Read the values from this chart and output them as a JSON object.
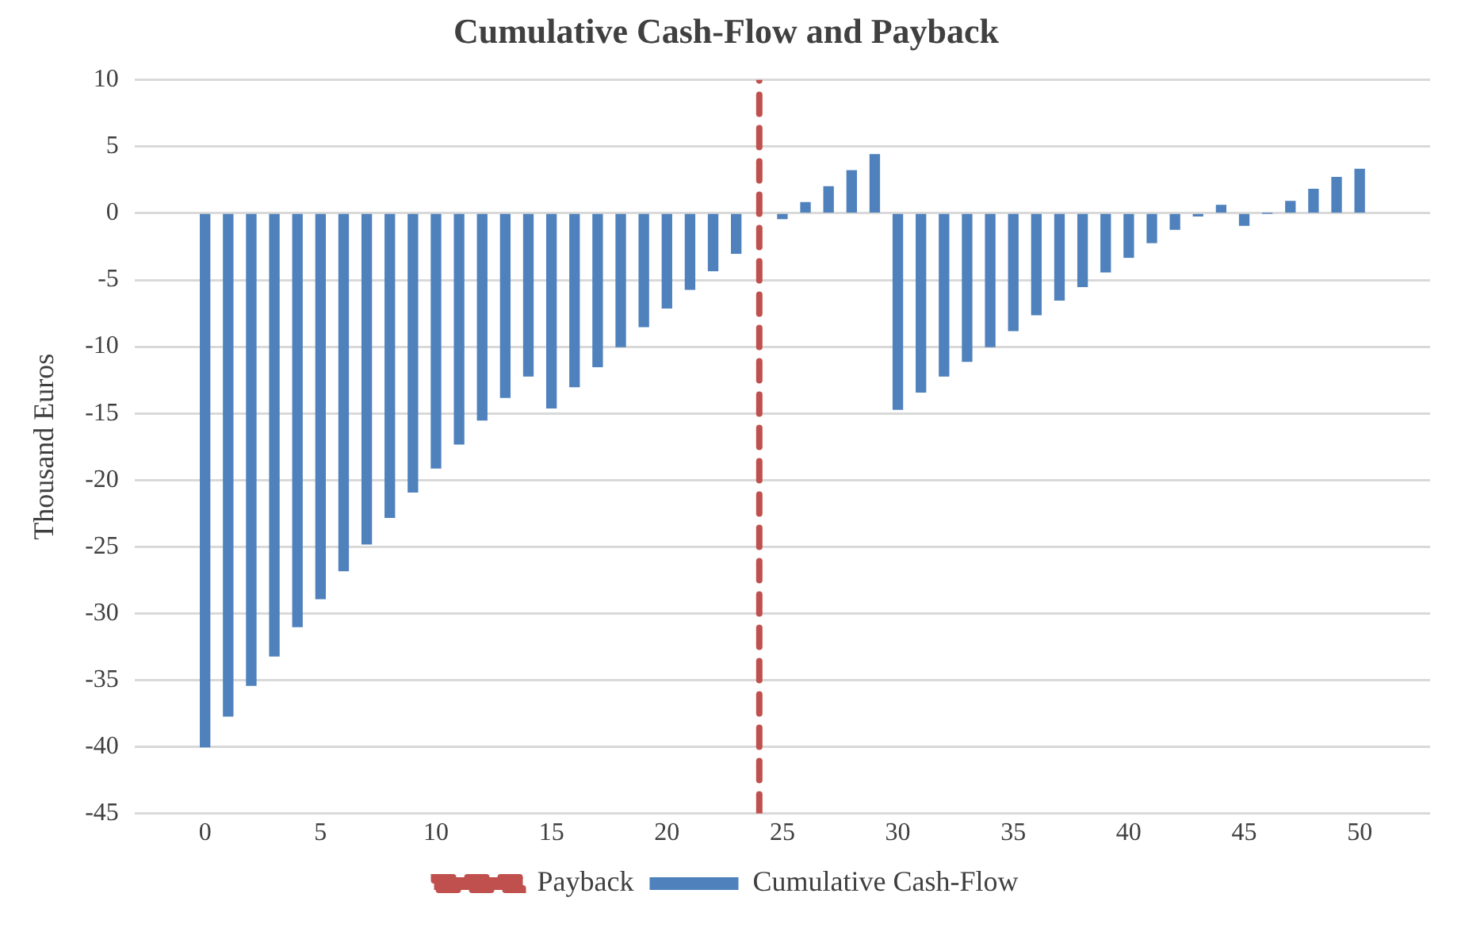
{
  "chart_data": {
    "type": "bar",
    "title": "Cumulative Cash-Flow and Payback",
    "ylabel": "Thousand Euros",
    "x": [
      0,
      1,
      2,
      3,
      4,
      5,
      6,
      7,
      8,
      9,
      10,
      11,
      12,
      13,
      14,
      15,
      16,
      17,
      18,
      19,
      20,
      21,
      22,
      23,
      24,
      25,
      26,
      27,
      28,
      29,
      30,
      31,
      32,
      33,
      34,
      35,
      36,
      37,
      38,
      39,
      40,
      41,
      42,
      43,
      44,
      45,
      46,
      47,
      48,
      49,
      50
    ],
    "series": [
      {
        "name": "Cumulative Cash-Flow",
        "color": "#4f81bd",
        "values": [
          -40,
          -37.7,
          -35.4,
          -33.2,
          -31,
          -28.9,
          -26.8,
          -24.8,
          -22.8,
          -20.9,
          -19.1,
          -17.3,
          -15.5,
          -13.8,
          -12.2,
          -14.6,
          -13,
          -11.5,
          -10,
          -8.5,
          -7.1,
          -5.7,
          -4.3,
          -3,
          null,
          -0.4,
          0.8,
          2,
          3.2,
          4.4,
          -14.7,
          -13.4,
          -12.2,
          -11.1,
          -10,
          -8.8,
          -7.6,
          -6.5,
          -5.5,
          -4.4,
          -3.3,
          -2.2,
          -1.2,
          -0.2,
          0.6,
          -0.9,
          0,
          0.9,
          1.8,
          2.7,
          3.3
        ]
      }
    ],
    "ref_lines": [
      {
        "axis": "x",
        "value": 24,
        "label": "Payback",
        "color": "#c0504d",
        "line_style": "dashed"
      }
    ],
    "xlim": [
      -0.5,
      50.5
    ],
    "xticks": [
      0,
      5,
      10,
      15,
      20,
      25,
      30,
      35,
      40,
      45,
      50
    ],
    "ylim": [
      -45,
      10
    ],
    "yticks": [
      -45,
      -40,
      -35,
      -30,
      -25,
      -20,
      -15,
      -10,
      -5,
      0,
      5,
      10
    ],
    "grid": "y",
    "legend": "bottom"
  }
}
